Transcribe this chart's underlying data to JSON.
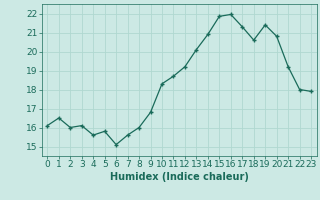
{
  "x": [
    0,
    1,
    2,
    3,
    4,
    5,
    6,
    7,
    8,
    9,
    10,
    11,
    12,
    13,
    14,
    15,
    16,
    17,
    18,
    19,
    20,
    21,
    22,
    23
  ],
  "y": [
    16.1,
    16.5,
    16.0,
    16.1,
    15.6,
    15.8,
    15.1,
    15.6,
    16.0,
    16.8,
    18.3,
    18.7,
    19.2,
    20.1,
    20.9,
    21.85,
    21.95,
    21.3,
    20.6,
    21.4,
    20.8,
    19.2,
    18.0,
    17.9
  ],
  "xlabel": "Humidex (Indice chaleur)",
  "ylim": [
    14.5,
    22.5
  ],
  "xlim": [
    -0.5,
    23.5
  ],
  "yticks": [
    15,
    16,
    17,
    18,
    19,
    20,
    21,
    22
  ],
  "xticks": [
    0,
    1,
    2,
    3,
    4,
    5,
    6,
    7,
    8,
    9,
    10,
    11,
    12,
    13,
    14,
    15,
    16,
    17,
    18,
    19,
    20,
    21,
    22,
    23
  ],
  "line_color": "#1a6b5a",
  "marker_color": "#1a6b5a",
  "bg_color": "#cce9e4",
  "grid_color": "#b0d8d0",
  "axis_color": "#1a6b5a",
  "label_color": "#1a6b5a",
  "xlabel_fontsize": 7,
  "tick_fontsize": 6.5
}
